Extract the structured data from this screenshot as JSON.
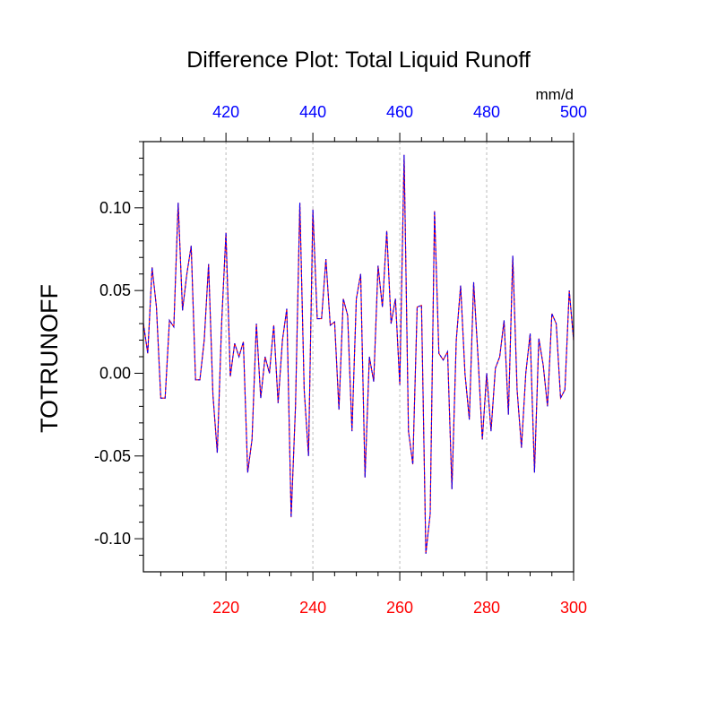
{
  "chart_data": {
    "type": "line",
    "title": "Difference Plot: Total Liquid Runoff",
    "units": "mm/d",
    "ylabel": "TOTRUNOFF",
    "xlabel": "",
    "xlim": [
      201,
      300
    ],
    "ylim": [
      -0.12,
      0.14
    ],
    "top_axis_offset": 200,
    "bottom_ticks": [
      220,
      240,
      260,
      280,
      300
    ],
    "top_ticks": [
      420,
      440,
      460,
      480,
      500
    ],
    "y_ticks": [
      "0.10",
      "0.05",
      "0.00",
      "-0.05",
      "-0.10"
    ],
    "y_tick_values": [
      0.1,
      0.05,
      0.0,
      -0.05,
      -0.1
    ],
    "grid": "vertical dashed at major x ticks",
    "legend": "none",
    "colors": {
      "bottom_axis": "#ff0000",
      "top_axis": "#0000ff",
      "series_a": "#ff0000",
      "series_b": "#0000ff",
      "grid": "#bbbbbb"
    },
    "series": [
      {
        "x_start": 201,
        "x_step": 1,
        "values": [
          0.03,
          0.012,
          0.064,
          0.04,
          -0.015,
          -0.015,
          0.032,
          0.028,
          0.103,
          0.038,
          0.06,
          0.077,
          -0.004,
          -0.004,
          0.02,
          0.066,
          -0.013,
          -0.048,
          0.03,
          0.085,
          -0.002,
          0.018,
          0.01,
          0.019,
          -0.06,
          -0.04,
          0.03,
          -0.015,
          0.01,
          0.0,
          0.029,
          -0.018,
          0.02,
          0.039,
          -0.087,
          -0.02,
          0.103,
          -0.01,
          -0.05,
          0.099,
          0.033,
          0.033,
          0.069,
          0.029,
          0.031,
          -0.022,
          0.045,
          0.035,
          -0.035,
          0.045,
          0.06,
          -0.063,
          0.01,
          -0.005,
          0.065,
          0.04,
          0.086,
          0.03,
          0.045,
          -0.007,
          0.132,
          -0.035,
          -0.055,
          0.04,
          0.041,
          -0.109,
          -0.085,
          0.098,
          0.012,
          0.008,
          0.013,
          -0.07,
          0.02,
          0.053,
          0.0,
          -0.028,
          0.055,
          0.01,
          -0.04,
          0.0,
          -0.035,
          0.003,
          0.01,
          0.032,
          -0.025,
          0.071,
          -0.01,
          -0.045,
          0.0,
          0.024,
          -0.06,
          0.021,
          0.005,
          -0.02,
          0.036,
          0.03,
          -0.015,
          -0.01,
          0.05,
          0.02
        ]
      }
    ]
  }
}
